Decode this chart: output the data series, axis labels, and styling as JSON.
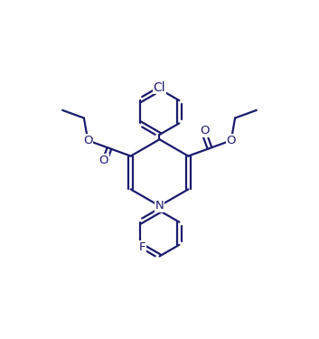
{
  "bg_color": "#ffffff",
  "bond_color": "#1a1a6e",
  "atom_color": "#1a1a6e",
  "line_width": 1.6,
  "font_size": 9.5,
  "fig_width": 3.53,
  "fig_height": 3.75,
  "dpi": 100,
  "xlim": [
    0,
    10
  ],
  "ylim": [
    0,
    10.6
  ]
}
